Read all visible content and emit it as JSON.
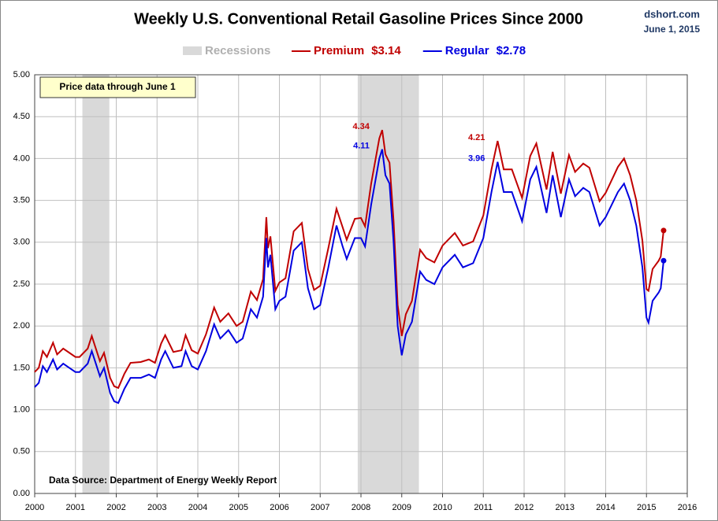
{
  "chart_data": {
    "type": "line",
    "title": "Weekly U.S. Conventional Retail Gasoline Prices Since 2000",
    "source_site": "dshort.com",
    "date": "June 1, 2015",
    "note": "Price data through June 1",
    "source": "Data Source: Department of Energy Weekly Report",
    "recessions": {
      "name": "Recessions",
      "color": "#d9d9d9",
      "periods": [
        [
          2001.17,
          2001.83
        ],
        [
          2007.92,
          2009.42
        ]
      ]
    },
    "x": [
      2000.0,
      2000.1,
      2000.2,
      2000.3,
      2000.45,
      2000.55,
      2000.7,
      2000.85,
      2001.0,
      2001.1,
      2001.3,
      2001.4,
      2001.5,
      2001.6,
      2001.7,
      2001.85,
      2001.95,
      2002.05,
      2002.2,
      2002.35,
      2002.6,
      2002.8,
      2002.95,
      2003.1,
      2003.2,
      2003.4,
      2003.6,
      2003.7,
      2003.85,
      2004.0,
      2004.2,
      2004.4,
      2004.55,
      2004.75,
      2004.95,
      2005.1,
      2005.3,
      2005.45,
      2005.6,
      2005.68,
      2005.72,
      2005.78,
      2005.9,
      2006.0,
      2006.15,
      2006.35,
      2006.55,
      2006.7,
      2006.85,
      2007.0,
      2007.2,
      2007.4,
      2007.55,
      2007.65,
      2007.85,
      2008.0,
      2008.1,
      2008.25,
      2008.45,
      2008.52,
      2008.6,
      2008.7,
      2008.8,
      2008.9,
      2009.0,
      2009.1,
      2009.25,
      2009.45,
      2009.6,
      2009.8,
      2010.0,
      2010.3,
      2010.5,
      2010.75,
      2011.0,
      2011.2,
      2011.35,
      2011.5,
      2011.7,
      2011.95,
      2012.15,
      2012.3,
      2012.55,
      2012.7,
      2012.9,
      2013.1,
      2013.25,
      2013.45,
      2013.6,
      2013.85,
      2014.0,
      2014.3,
      2014.45,
      2014.6,
      2014.75,
      2014.9,
      2015.0,
      2015.05,
      2015.15,
      2015.3,
      2015.35,
      2015.42
    ],
    "series": [
      {
        "name": "Premium",
        "last_label": "$3.14",
        "color": "#c00000",
        "values": [
          1.45,
          1.5,
          1.7,
          1.63,
          1.8,
          1.66,
          1.73,
          1.68,
          1.63,
          1.63,
          1.73,
          1.88,
          1.73,
          1.58,
          1.68,
          1.38,
          1.28,
          1.26,
          1.43,
          1.56,
          1.57,
          1.6,
          1.56,
          1.79,
          1.89,
          1.69,
          1.71,
          1.89,
          1.71,
          1.67,
          1.9,
          2.22,
          2.05,
          2.15,
          2.0,
          2.05,
          2.41,
          2.31,
          2.56,
          3.3,
          2.93,
          3.07,
          2.42,
          2.52,
          2.57,
          3.13,
          3.23,
          2.68,
          2.43,
          2.48,
          2.93,
          3.4,
          3.18,
          3.03,
          3.28,
          3.29,
          3.19,
          3.7,
          4.24,
          4.34,
          4.05,
          3.95,
          3.25,
          2.25,
          1.88,
          2.14,
          2.3,
          2.91,
          2.81,
          2.76,
          2.96,
          3.11,
          2.96,
          3.01,
          3.32,
          3.87,
          4.21,
          3.87,
          3.87,
          3.53,
          4.03,
          4.18,
          3.63,
          4.08,
          3.58,
          4.04,
          3.84,
          3.94,
          3.89,
          3.49,
          3.59,
          3.9,
          4.0,
          3.8,
          3.5,
          3.02,
          2.44,
          2.42,
          2.68,
          2.78,
          2.83,
          3.14
        ]
      },
      {
        "name": "Regular",
        "last_label": "$2.78",
        "color": "#0000e0",
        "values": [
          1.27,
          1.32,
          1.52,
          1.45,
          1.6,
          1.48,
          1.55,
          1.5,
          1.45,
          1.45,
          1.55,
          1.7,
          1.55,
          1.4,
          1.5,
          1.2,
          1.1,
          1.08,
          1.25,
          1.38,
          1.38,
          1.42,
          1.38,
          1.6,
          1.7,
          1.5,
          1.52,
          1.7,
          1.52,
          1.48,
          1.7,
          2.02,
          1.85,
          1.95,
          1.8,
          1.85,
          2.2,
          2.1,
          2.35,
          3.05,
          2.7,
          2.85,
          2.2,
          2.3,
          2.35,
          2.9,
          3.0,
          2.45,
          2.2,
          2.25,
          2.7,
          3.2,
          2.95,
          2.8,
          3.05,
          3.05,
          2.95,
          3.45,
          4.0,
          4.11,
          3.8,
          3.7,
          3.0,
          2.0,
          1.65,
          1.9,
          2.05,
          2.65,
          2.55,
          2.5,
          2.7,
          2.85,
          2.7,
          2.75,
          3.05,
          3.6,
          3.96,
          3.6,
          3.6,
          3.25,
          3.75,
          3.9,
          3.35,
          3.8,
          3.3,
          3.75,
          3.55,
          3.65,
          3.6,
          3.2,
          3.3,
          3.6,
          3.7,
          3.5,
          3.2,
          2.7,
          2.1,
          2.04,
          2.3,
          2.4,
          2.45,
          2.78
        ]
      }
    ],
    "annotations": [
      {
        "x": 2008.52,
        "value": 4.34,
        "series": 0
      },
      {
        "x": 2008.52,
        "value": 4.11,
        "series": 1
      },
      {
        "x": 2011.35,
        "value": 4.21,
        "series": 0
      },
      {
        "x": 2011.35,
        "value": 3.96,
        "series": 1
      }
    ],
    "xlim": [
      2000,
      2016
    ],
    "xticks": [
      2000,
      2001,
      2002,
      2003,
      2004,
      2005,
      2006,
      2007,
      2008,
      2009,
      2010,
      2011,
      2012,
      2013,
      2014,
      2015,
      2016
    ],
    "ylim": [
      0,
      5
    ],
    "yticks": [
      {
        "value": 0,
        "label": "0.00"
      },
      {
        "value": 0.5,
        "label": "0.50"
      },
      {
        "value": 1,
        "label": "1.00"
      },
      {
        "value": 1.5,
        "label": "1.50"
      },
      {
        "value": 2,
        "label": "2.00"
      },
      {
        "value": 2.5,
        "label": "2.50"
      },
      {
        "value": 3,
        "label": "3.00"
      },
      {
        "value": 3.5,
        "label": "3.50"
      },
      {
        "value": 4,
        "label": "4.00"
      },
      {
        "value": 4.5,
        "label": "4.50"
      },
      {
        "value": 5,
        "label": "5.00"
      }
    ],
    "grid": true
  }
}
